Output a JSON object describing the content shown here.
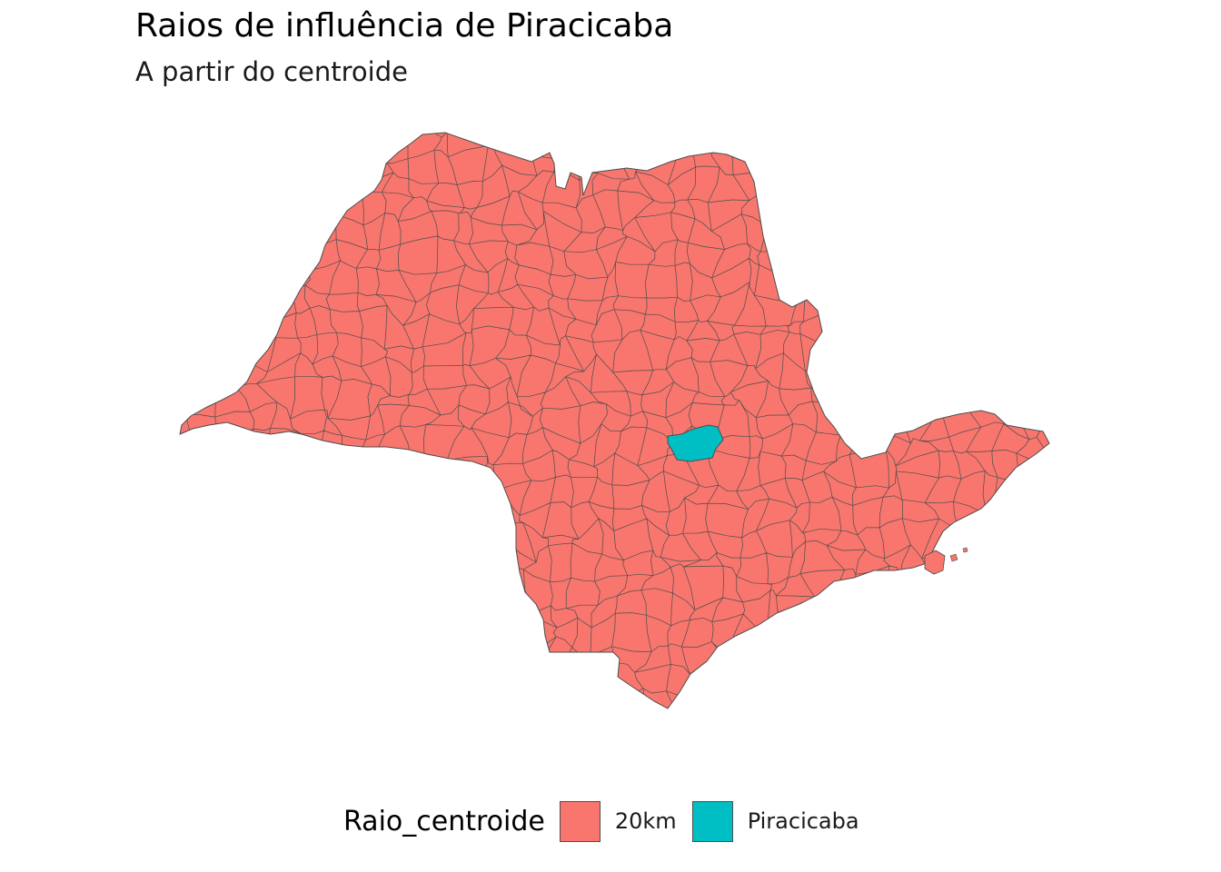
{
  "title": "Raios de influência de Piracicaba",
  "subtitle": "A partir do centroide",
  "legend": {
    "title": "Raio_centroide",
    "items": [
      {
        "label": "20km",
        "color": "#F8766D"
      },
      {
        "label": "Piracicaba",
        "color": "#00BFC4"
      }
    ]
  },
  "map": {
    "region": "São Paulo state municipalities",
    "fill_default": "#F8766D",
    "fill_highlight": "#00BFC4",
    "border_color": "#4d4d4d",
    "highlighted_feature": "Piracicaba"
  }
}
